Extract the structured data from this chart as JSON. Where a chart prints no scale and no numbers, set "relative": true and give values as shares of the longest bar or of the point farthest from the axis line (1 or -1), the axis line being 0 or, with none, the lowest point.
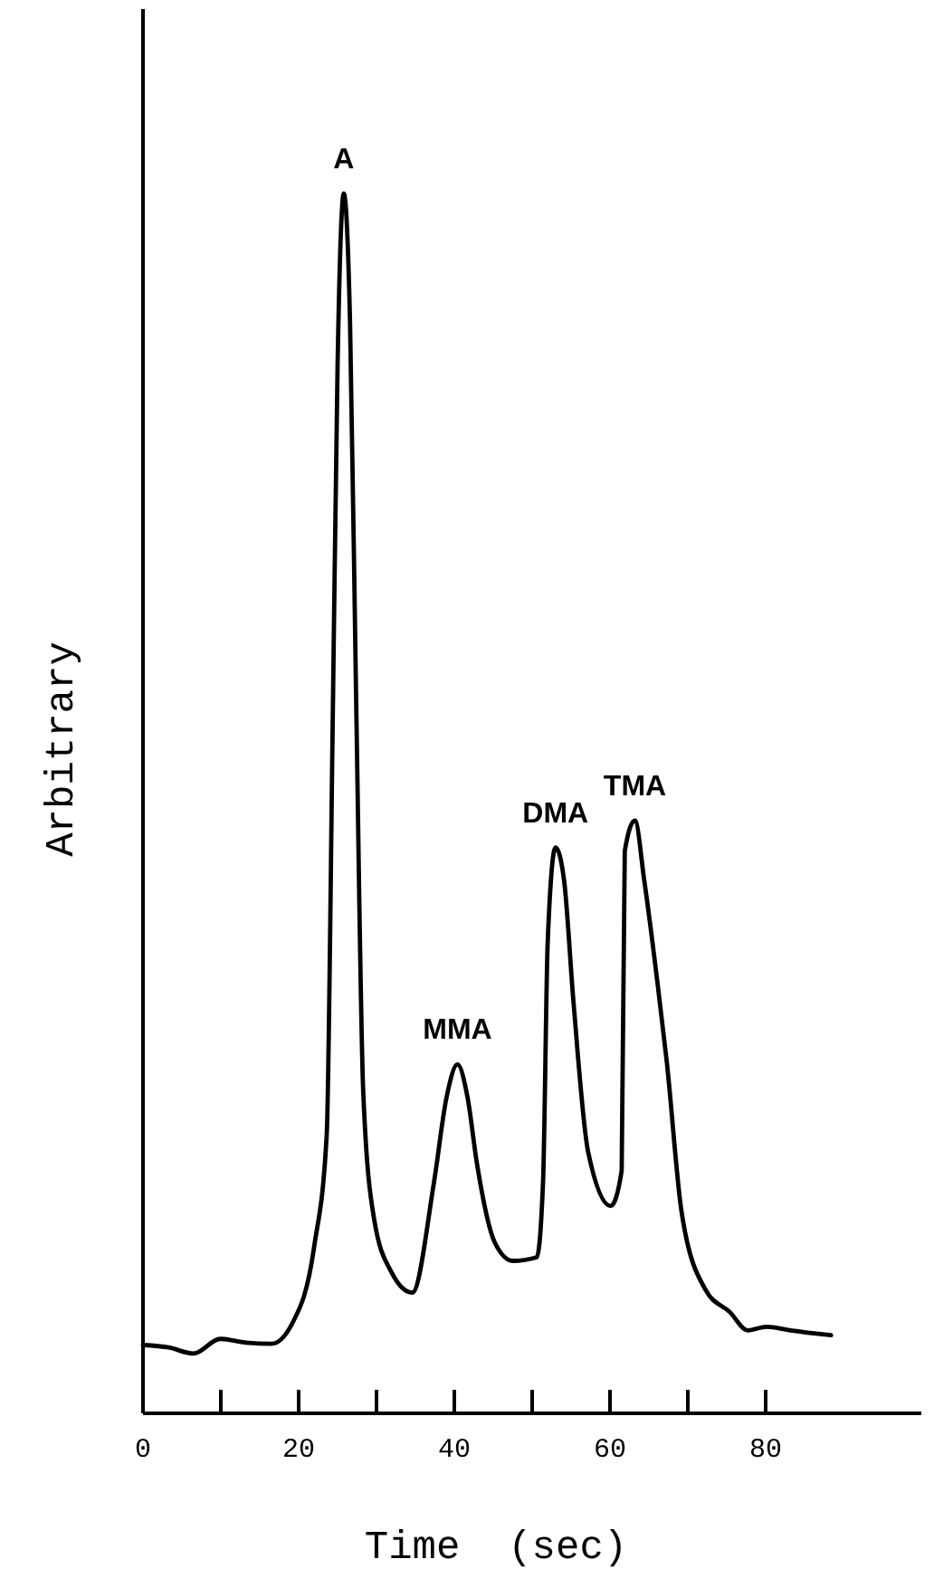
{
  "chart_data": {
    "type": "line",
    "relative": true,
    "xlabel": "Time  (sec)",
    "ylabel": "Arbitrary",
    "xlim": [
      0,
      100
    ],
    "xticks": [
      0,
      {
        "value": 10,
        "label": null
      },
      20,
      {
        "value": 30,
        "label": null
      },
      40,
      {
        "value": 50,
        "label": null
      },
      60,
      {
        "value": 70,
        "label": null
      },
      80
    ],
    "tick_labels": "x",
    "grid": false,
    "marker": "none",
    "line_style": "solid",
    "series": [
      {
        "color": "#000000",
        "x": [
          0,
          3.3,
          6.5,
          9.9,
          13.2,
          16.5,
          19.2,
          22,
          23.6,
          24.4,
          25,
          25.8,
          26.6,
          27.4,
          28.3,
          29.7,
          31.9,
          34.6,
          37.4,
          39,
          40.4,
          41.7,
          42.9,
          45.2,
          47.5,
          50.6,
          51.4,
          52,
          53,
          54.1,
          55.3,
          57.2,
          60.1,
          61.5,
          61.9,
          63.2,
          64.4,
          66.1,
          67.3,
          69.2,
          72.3,
          75.4,
          77.7,
          80.1,
          83.2,
          88.4
        ],
        "values": [
          0.056,
          0.054,
          0.049,
          0.061,
          0.058,
          0.057,
          0.074,
          0.137,
          0.228,
          0.579,
          0.859,
          1,
          0.895,
          0.579,
          0.263,
          0.159,
          0.116,
          0.099,
          0.19,
          0.259,
          0.286,
          0.259,
          0.205,
          0.14,
          0.125,
          0.128,
          0.19,
          0.387,
          0.464,
          0.437,
          0.338,
          0.214,
          0.17,
          0.199,
          0.461,
          0.486,
          0.437,
          0.353,
          0.288,
          0.165,
          0.101,
          0.083,
          0.068,
          0.071,
          0.068,
          0.064
        ]
      }
    ],
    "annotations": [
      {
        "text": "A",
        "x": 25.8,
        "y": 1
      },
      {
        "text": "MMA",
        "x": 40.4,
        "y": 0.286
      },
      {
        "text": "DMA",
        "x": 53,
        "y": 0.464
      },
      {
        "text": "TMA",
        "x": 63.2,
        "y": 0.486
      }
    ]
  }
}
